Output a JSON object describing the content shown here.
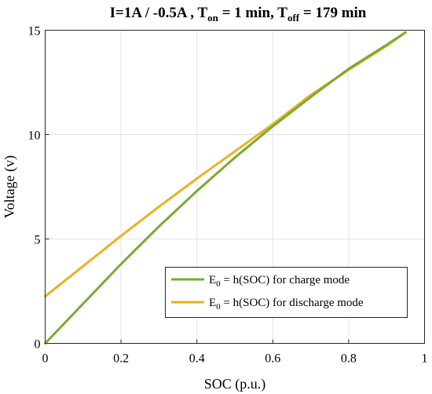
{
  "chart_data": {
    "type": "line",
    "title": {
      "prefix": "I=1A / -0.5A , T",
      "on_sub": "on",
      "mid": " = 1 min, T",
      "off_sub": "off",
      "suffix": " = 179 min"
    },
    "xlabel": "SOC (p.u.)",
    "ylabel": "Voltage (v)",
    "xlim": [
      0,
      1
    ],
    "ylim": [
      0,
      15
    ],
    "xticks": [
      0,
      0.2,
      0.4,
      0.6,
      0.8,
      1
    ],
    "xtick_labels": [
      "0",
      "0.2",
      "0.4",
      "0.6",
      "0.8",
      "1"
    ],
    "yticks": [
      0,
      5,
      10,
      15
    ],
    "ytick_labels": [
      "0",
      "5",
      "10",
      "15"
    ],
    "grid": true,
    "legend_position": "bottom-right",
    "series": [
      {
        "name": "E_0 = h(SOC) for charge mode",
        "legend": {
          "pre": "E",
          "sub": "0",
          "post": " = h(SOC) for charge mode"
        },
        "color": "#77ac30",
        "x": [
          0,
          0.1,
          0.2,
          0.3,
          0.4,
          0.5,
          0.6,
          0.7,
          0.8,
          0.9,
          0.95
        ],
        "y": [
          0,
          1.9,
          3.8,
          5.6,
          7.3,
          8.9,
          10.4,
          11.8,
          13.15,
          14.3,
          14.9
        ]
      },
      {
        "name": "E_0 = h(SOC) for discharge mode",
        "legend": {
          "pre": "E",
          "sub": "0",
          "post": " = h(SOC) for discharge mode"
        },
        "color": "#edb120",
        "x": [
          0,
          0.1,
          0.2,
          0.3,
          0.4,
          0.5,
          0.6,
          0.7,
          0.8,
          0.9,
          0.95
        ],
        "y": [
          2.25,
          3.7,
          5.15,
          6.55,
          7.9,
          9.2,
          10.5,
          11.9,
          13.1,
          14.25,
          14.9
        ]
      }
    ]
  }
}
